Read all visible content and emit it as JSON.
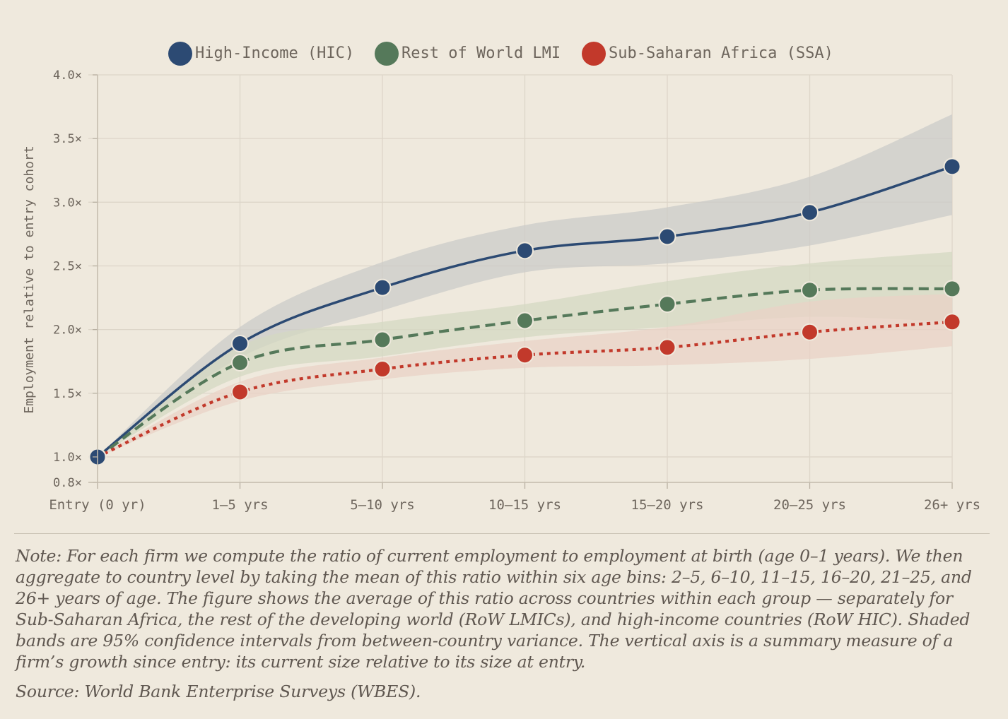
{
  "chart_data": {
    "type": "line",
    "categories": [
      "Entry (0 yr)",
      "1–5 yrs",
      "5–10 yrs",
      "10–15 yrs",
      "15–20 yrs",
      "20–25 yrs",
      "26+ yrs"
    ],
    "ylabel": "Employment relative to entry cohort",
    "ylim": [
      0.8,
      4.0
    ],
    "yticks": [
      {
        "value": 0.8,
        "label": "0.8×"
      },
      {
        "value": 1.0,
        "label": "1.0×"
      },
      {
        "value": 1.5,
        "label": "1.5×"
      },
      {
        "value": 2.0,
        "label": "2.0×"
      },
      {
        "value": 2.5,
        "label": "2.5×"
      },
      {
        "value": 3.0,
        "label": "3.0×"
      },
      {
        "value": 3.5,
        "label": "3.5×"
      },
      {
        "value": 4.0,
        "label": "4.0×"
      }
    ],
    "grid": true,
    "legend_position": "top-center",
    "series": [
      {
        "name": "High-Income (HIC)",
        "color": "#2c4a73",
        "line_style": "solid",
        "values": [
          1.0,
          1.89,
          2.33,
          2.62,
          2.73,
          2.92,
          3.28
        ],
        "ci_low": [
          1.0,
          1.78,
          2.15,
          2.45,
          2.52,
          2.66,
          2.9
        ],
        "ci_high": [
          1.0,
          2.02,
          2.53,
          2.82,
          2.96,
          3.2,
          3.69
        ],
        "band_color": "#cbcbc8"
      },
      {
        "name": "Rest of World LMI",
        "color": "#55795a",
        "line_style": "dashed",
        "values": [
          1.0,
          1.74,
          1.92,
          2.07,
          2.2,
          2.31,
          2.32
        ],
        "ci_low": [
          1.0,
          1.63,
          1.79,
          1.94,
          2.02,
          2.1,
          2.06
        ],
        "ci_high": [
          1.0,
          1.87,
          2.06,
          2.2,
          2.38,
          2.52,
          2.61
        ],
        "band_color": "#d4d8c2"
      },
      {
        "name": "Sub-Saharan Africa (SSA)",
        "color": "#c2392b",
        "line_style": "dotted",
        "values": [
          1.0,
          1.51,
          1.69,
          1.8,
          1.86,
          1.98,
          2.06
        ],
        "ci_low": [
          1.0,
          1.44,
          1.61,
          1.7,
          1.72,
          1.77,
          1.87
        ],
        "ci_high": [
          1.0,
          1.59,
          1.78,
          1.91,
          2.02,
          2.22,
          2.28
        ],
        "band_color": "#ead2c6"
      }
    ]
  },
  "note": "Note: For each firm we compute the ratio of current employment to employment at birth (age 0–1 years). We then aggregate to country level by taking the mean of this ratio within six age bins: 2–5, 6–10, 11–15, 16–20, 21–25, and 26+ years of age. The figure shows the average of this ratio across countries within each group — separately for Sub-Saharan Africa, the rest of the developing world (RoW LMICs), and high-income countries (RoW HIC). Shaded bands are 95% confidence intervals from between-country variance. The vertical axis is a summary measure of a firm’s growth since entry: its current size relative to its size at entry.",
  "source": "Source: World Bank Enterprise Surveys (WBES)."
}
